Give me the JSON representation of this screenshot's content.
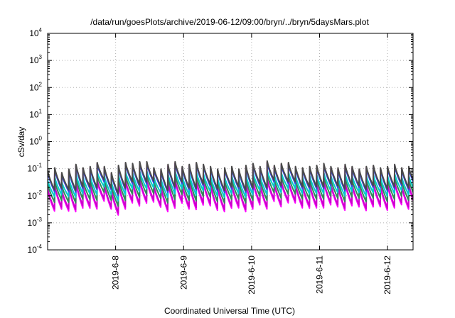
{
  "chart_data": {
    "type": "line",
    "title": "/data/run/goesPlots/archive/2019-06-12/09:00/bryn/../bryn/5daysMars.plot",
    "xlabel": "Coordinated Universal Time (UTC)",
    "ylabel": "cSv/day",
    "yscale": "log",
    "ylim": [
      0.0001,
      10000
    ],
    "xlim": [
      "2019-06-07 00:00",
      "2019-06-12 09:00"
    ],
    "y_ticks": [
      {
        "base": "10",
        "exp": "-4",
        "value": 0.0001
      },
      {
        "base": "10",
        "exp": "-3",
        "value": 0.001
      },
      {
        "base": "10",
        "exp": "-2",
        "value": 0.01
      },
      {
        "base": "10",
        "exp": "-1",
        "value": 0.1
      },
      {
        "base": "10",
        "exp": "0",
        "value": 1
      },
      {
        "base": "10",
        "exp": "1",
        "value": 10
      },
      {
        "base": "10",
        "exp": "2",
        "value": 100
      },
      {
        "base": "10",
        "exp": "3",
        "value": 1000
      },
      {
        "base": "10",
        "exp": "4",
        "value": 10000
      }
    ],
    "x_ticks": [
      "2019-6-8",
      "2019-6-9",
      "2019-6-10",
      "2019-6-11",
      "2019-6-12"
    ],
    "grid": true,
    "legend": "none",
    "sawtooth": {
      "period_hours": 2.5,
      "sharp_rise": true,
      "note_visible": false
    },
    "series": [
      {
        "color": "#ff00ff",
        "peak": [
          0.008,
          0.04
        ],
        "trough": [
          0.0011,
          0.006
        ]
      },
      {
        "color": "#cc00cc",
        "peak": [
          0.01,
          0.045
        ],
        "trough": [
          0.0015,
          0.007
        ]
      },
      {
        "color": "#2e8b57",
        "peak": [
          0.02,
          0.06
        ],
        "trough": [
          0.003,
          0.012
        ]
      },
      {
        "color": "#00cccc",
        "peak": [
          0.04,
          0.07
        ],
        "trough": [
          0.006,
          0.018
        ]
      },
      {
        "color": "#ff0000",
        "peak": [
          0.06,
          0.16
        ],
        "trough": [
          0.01,
          0.03
        ]
      },
      {
        "color": "#3344ee",
        "peak": [
          0.06,
          0.15
        ],
        "trough": [
          0.009,
          0.028
        ]
      },
      {
        "color": "#4a4a4a",
        "peak": [
          0.07,
          0.17
        ],
        "trough": [
          0.011,
          0.032
        ]
      }
    ],
    "peaks_by_hour": [
      [
        0,
        0.07
      ],
      [
        2.5,
        0.09
      ],
      [
        5,
        0.06
      ],
      [
        7.5,
        0.08
      ],
      [
        10,
        0.12
      ],
      [
        12.5,
        0.09
      ],
      [
        15,
        0.1
      ],
      [
        17.5,
        0.14
      ],
      [
        20,
        0.1
      ],
      [
        22.5,
        0.06
      ],
      [
        25,
        0.11
      ],
      [
        27.5,
        0.14
      ],
      [
        30,
        0.13
      ],
      [
        32.5,
        0.15
      ],
      [
        35,
        0.15
      ],
      [
        37.5,
        0.09
      ],
      [
        40,
        0.08
      ],
      [
        42.5,
        0.12
      ],
      [
        45,
        0.15
      ],
      [
        47.5,
        0.1
      ],
      [
        50,
        0.12
      ],
      [
        52.5,
        0.14
      ],
      [
        55,
        0.12
      ],
      [
        57.5,
        0.1
      ],
      [
        60,
        0.08
      ],
      [
        62.5,
        0.09
      ],
      [
        65,
        0.1
      ],
      [
        67.5,
        0.08
      ],
      [
        70,
        0.11
      ],
      [
        72.5,
        0.13
      ],
      [
        75,
        0.1
      ],
      [
        77.5,
        0.16
      ],
      [
        80,
        0.11
      ],
      [
        82.5,
        0.13
      ],
      [
        85,
        0.14
      ],
      [
        87.5,
        0.1
      ],
      [
        90,
        0.09
      ],
      [
        92.5,
        0.1
      ],
      [
        95,
        0.11
      ],
      [
        97.5,
        0.13
      ],
      [
        100,
        0.1
      ],
      [
        102.5,
        0.09
      ],
      [
        105,
        0.12
      ],
      [
        107.5,
        0.1
      ],
      [
        110,
        0.08
      ],
      [
        112.5,
        0.1
      ],
      [
        115,
        0.11
      ],
      [
        117.5,
        0.09
      ],
      [
        120,
        0.1
      ],
      [
        122.5,
        0.12
      ],
      [
        125,
        0.09
      ],
      [
        127.5,
        0.1
      ],
      [
        130,
        0.08
      ],
      [
        132.5,
        0.1
      ]
    ],
    "troughs_by_hour": [
      [
        2.4,
        0.012
      ],
      [
        4.9,
        0.011
      ],
      [
        7.4,
        0.014
      ],
      [
        9.9,
        0.01
      ],
      [
        12.4,
        0.009
      ],
      [
        14.9,
        0.012
      ],
      [
        17.4,
        0.01
      ],
      [
        19.9,
        0.014
      ],
      [
        22.4,
        0.01
      ],
      [
        24.9,
        0.01
      ],
      [
        27.4,
        0.009
      ],
      [
        29.9,
        0.012
      ],
      [
        32.4,
        0.01
      ],
      [
        34.9,
        0.011
      ],
      [
        37.4,
        0.012
      ],
      [
        39.9,
        0.013
      ],
      [
        42.4,
        0.01
      ],
      [
        44.9,
        0.009
      ],
      [
        47.4,
        0.011
      ],
      [
        49.9,
        0.01
      ],
      [
        52.4,
        0.008
      ],
      [
        54.9,
        0.01
      ],
      [
        57.4,
        0.011
      ],
      [
        59.9,
        0.009
      ],
      [
        62.4,
        0.01
      ],
      [
        64.9,
        0.012
      ],
      [
        67.4,
        0.011
      ],
      [
        69.9,
        0.01
      ],
      [
        72.4,
        0.009
      ],
      [
        74.9,
        0.011
      ],
      [
        77.4,
        0.01
      ],
      [
        79.9,
        0.012
      ],
      [
        82.4,
        0.011
      ],
      [
        84.9,
        0.013
      ],
      [
        87.4,
        0.012
      ],
      [
        89.9,
        0.011
      ],
      [
        92.4,
        0.012
      ],
      [
        94.9,
        0.011
      ],
      [
        97.4,
        0.01
      ],
      [
        99.9,
        0.011
      ],
      [
        102.4,
        0.012
      ],
      [
        104.9,
        0.01
      ],
      [
        107.4,
        0.011
      ],
      [
        109.9,
        0.012
      ],
      [
        112.4,
        0.011
      ],
      [
        114.9,
        0.012
      ],
      [
        117.4,
        0.011
      ],
      [
        119.9,
        0.01
      ],
      [
        122.4,
        0.011
      ],
      [
        124.9,
        0.012
      ],
      [
        127.4,
        0.011
      ],
      [
        129.9,
        0.012
      ],
      [
        132.4,
        0.011
      ],
      [
        133,
        0.012
      ]
    ]
  }
}
